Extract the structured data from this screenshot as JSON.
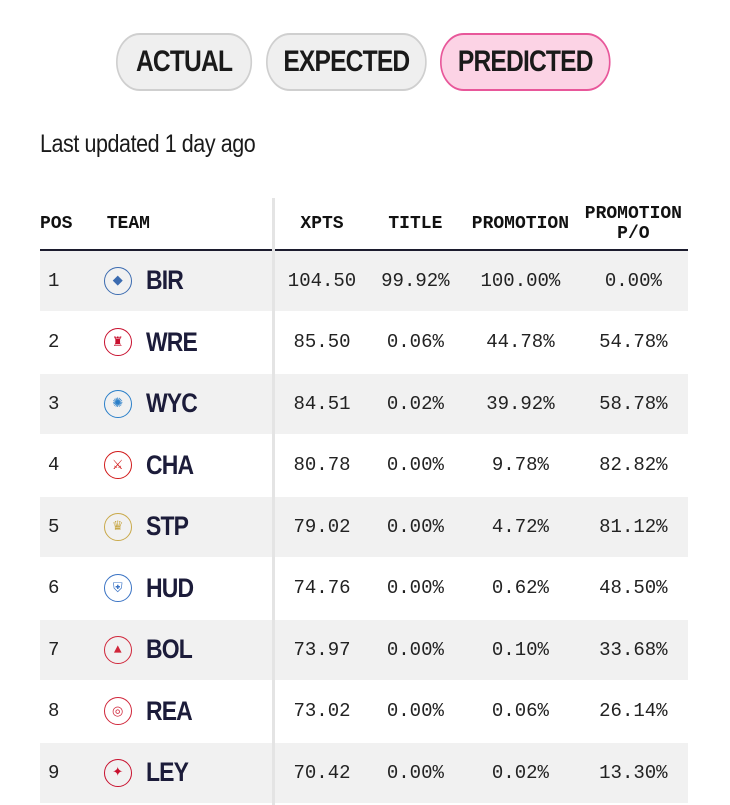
{
  "toggles": [
    {
      "label": "ACTUAL",
      "active": false
    },
    {
      "label": "EXPECTED",
      "active": false
    },
    {
      "label": "PREDICTED",
      "active": true
    }
  ],
  "updated_text": "Last updated 1 day ago",
  "columns": {
    "pos": "POS",
    "team": "TEAM",
    "xpts": "XPTS",
    "title": "TITLE",
    "promotion": "PROMOTION",
    "promotion_po_line1": "PROMOTION",
    "promotion_po_line2": "P/O"
  },
  "rows": [
    {
      "pos": "1",
      "team": "BIR",
      "crest_icon": "birmingham-crest-icon",
      "crest_color": "#3b6bb0",
      "xpts": "104.50",
      "title": "99.92%",
      "promotion": "100.00%",
      "po": "0.00%"
    },
    {
      "pos": "2",
      "team": "WRE",
      "crest_icon": "wrexham-crest-icon",
      "crest_color": "#c8102e",
      "xpts": "85.50",
      "title": "0.06%",
      "promotion": "44.78%",
      "po": "54.78%"
    },
    {
      "pos": "3",
      "team": "WYC",
      "crest_icon": "wycombe-crest-icon",
      "crest_color": "#2a7fc9",
      "xpts": "84.51",
      "title": "0.02%",
      "promotion": "39.92%",
      "po": "58.78%"
    },
    {
      "pos": "4",
      "team": "CHA",
      "crest_icon": "charlton-crest-icon",
      "crest_color": "#d11a1a",
      "xpts": "80.78",
      "title": "0.00%",
      "promotion": "9.78%",
      "po": "82.82%"
    },
    {
      "pos": "5",
      "team": "STP",
      "crest_icon": "stockport-crest-icon",
      "crest_color": "#c9a94a",
      "xpts": "79.02",
      "title": "0.00%",
      "promotion": "4.72%",
      "po": "81.12%"
    },
    {
      "pos": "6",
      "team": "HUD",
      "crest_icon": "huddersfield-crest-icon",
      "crest_color": "#3a73c4",
      "xpts": "74.76",
      "title": "0.00%",
      "promotion": "0.62%",
      "po": "48.50%"
    },
    {
      "pos": "7",
      "team": "BOL",
      "crest_icon": "bolton-crest-icon",
      "crest_color": "#d0263a",
      "xpts": "73.97",
      "title": "0.00%",
      "promotion": "0.10%",
      "po": "33.68%"
    },
    {
      "pos": "8",
      "team": "REA",
      "crest_icon": "reading-crest-icon",
      "crest_color": "#d0263a",
      "xpts": "73.02",
      "title": "0.00%",
      "promotion": "0.06%",
      "po": "26.14%"
    },
    {
      "pos": "9",
      "team": "LEY",
      "crest_icon": "leyton-orient-crest-icon",
      "crest_color": "#c8102e",
      "xpts": "70.42",
      "title": "0.00%",
      "promotion": "0.02%",
      "po": "13.30%"
    }
  ]
}
